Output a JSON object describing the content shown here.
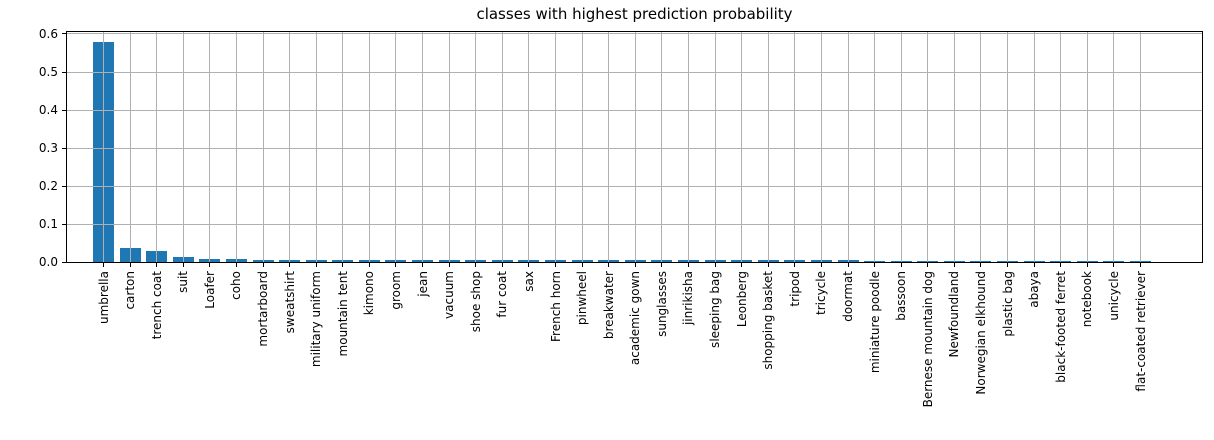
{
  "chart_data": {
    "type": "bar",
    "title": "classes with highest prediction probability",
    "categories": [
      "umbrella",
      "carton",
      "trench coat",
      "suit",
      "Loafer",
      "coho",
      "mortarboard",
      "sweatshirt",
      "military uniform",
      "mountain tent",
      "kimono",
      "groom",
      "jean",
      "vacuum",
      "shoe shop",
      "fur coat",
      "sax",
      "French horn",
      "pinwheel",
      "breakwater",
      "academic gown",
      "sunglasses",
      "jinrikisha",
      "sleeping bag",
      "Leonberg",
      "shopping basket",
      "tripod",
      "tricycle",
      "doormat",
      "miniature poodle",
      "bassoon",
      "Bernese mountain dog",
      "Newfoundland",
      "Norwegian elkhound",
      "plastic bag",
      "abaya",
      "black-footed ferret",
      "notebook",
      "unicycle",
      "flat-coated retriever"
    ],
    "values": [
      0.58,
      0.036,
      0.03,
      0.013,
      0.009,
      0.007,
      0.006,
      0.006,
      0.006,
      0.006,
      0.005,
      0.005,
      0.004,
      0.004,
      0.004,
      0.004,
      0.004,
      0.004,
      0.004,
      0.004,
      0.004,
      0.004,
      0.004,
      0.004,
      0.004,
      0.004,
      0.004,
      0.004,
      0.004,
      0.003,
      0.003,
      0.003,
      0.003,
      0.003,
      0.003,
      0.003,
      0.003,
      0.003,
      0.003,
      0.003
    ],
    "xlabel": "",
    "ylabel": "",
    "ylim": [
      0,
      0.6
    ],
    "ytick_labels": [
      "0.0",
      "0.1",
      "0.2",
      "0.3",
      "0.4",
      "0.5",
      "0.6"
    ],
    "grid": "on",
    "legend": "none",
    "bar_color": "#1f77b4",
    "grid_color": "#b0b0b0",
    "axis_color": "#000000"
  }
}
